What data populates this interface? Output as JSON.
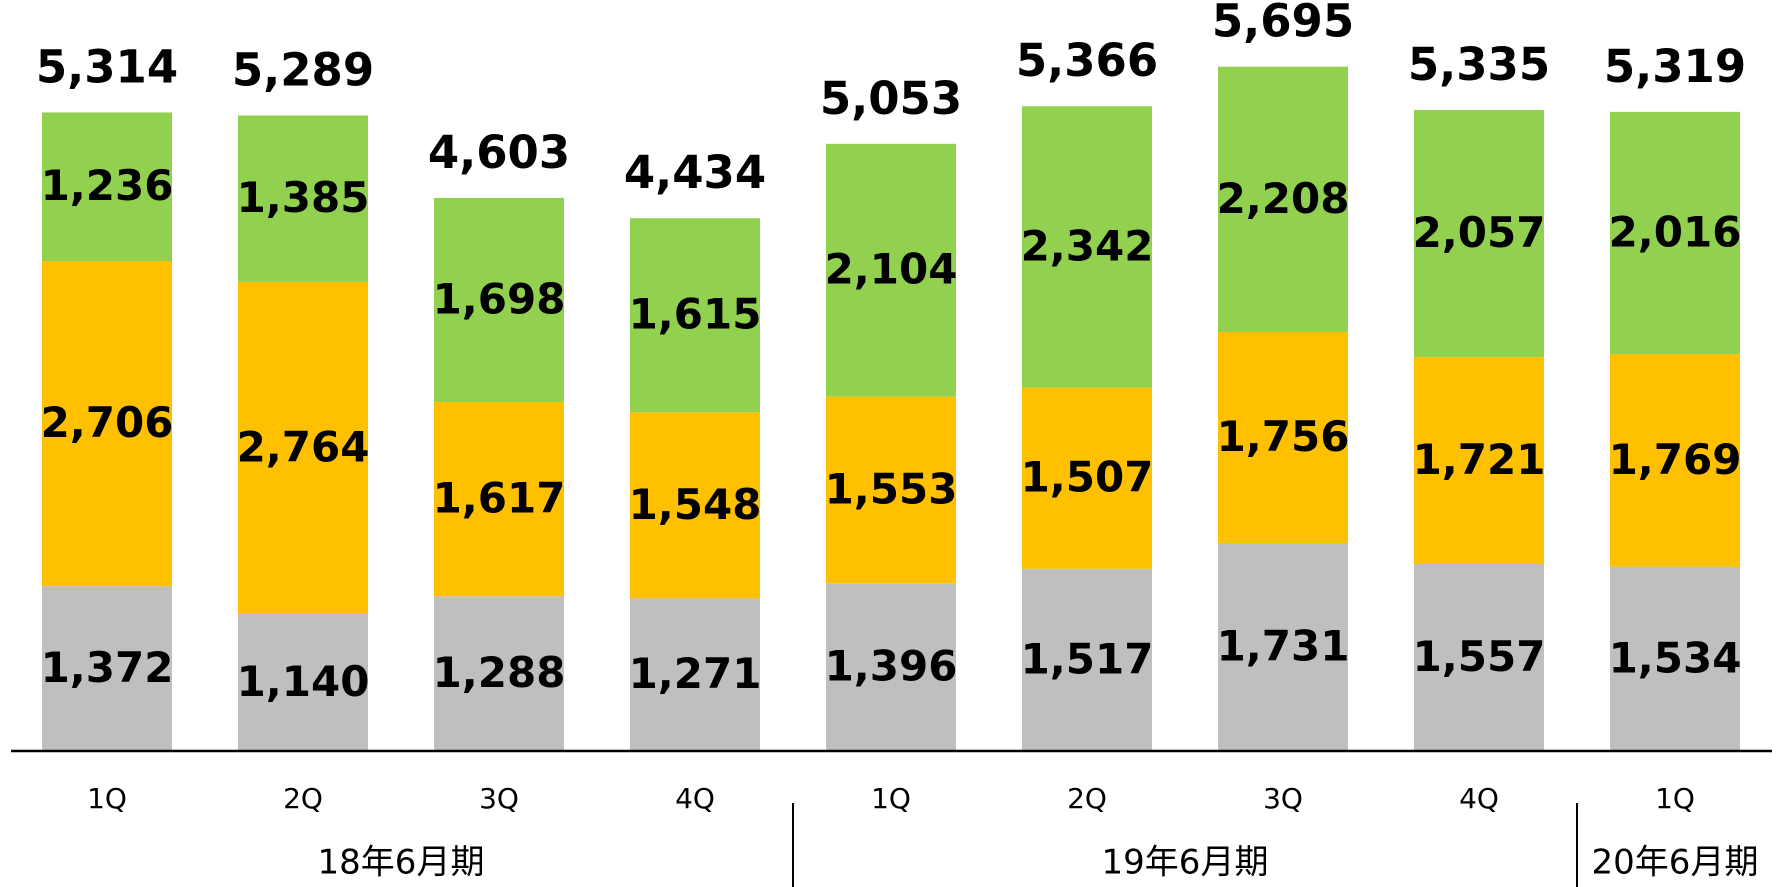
{
  "chart_data": {
    "type": "stacked-bar",
    "groups": [
      {
        "label": "18年6月期",
        "categories": [
          "1Q",
          "2Q",
          "3Q",
          "4Q"
        ]
      },
      {
        "label": "19年6月期",
        "categories": [
          "1Q",
          "2Q",
          "3Q",
          "4Q"
        ]
      },
      {
        "label": "20年6月期",
        "categories": [
          "1Q"
        ]
      }
    ],
    "series": [
      {
        "color": "#bfbfbf",
        "values": [
          1372,
          1140,
          1288,
          1271,
          1396,
          1517,
          1731,
          1557,
          1534
        ],
        "value_labels": [
          "1,372",
          "1,140",
          "1,288",
          "1,271",
          "1,396",
          "1,517",
          "1,731",
          "1,557",
          "1,534"
        ]
      },
      {
        "color": "#ffc000",
        "values": [
          2706,
          2764,
          1617,
          1548,
          1553,
          1507,
          1756,
          1721,
          1769
        ],
        "value_labels": [
          "2,706",
          "2,764",
          "1,617",
          "1,548",
          "1,553",
          "1,507",
          "1,756",
          "1,721",
          "1,769"
        ]
      },
      {
        "color": "#92d050",
        "values": [
          1236,
          1385,
          1698,
          1615,
          2104,
          2342,
          2208,
          2057,
          2016
        ],
        "value_labels": [
          "1,236",
          "1,385",
          "1,698",
          "1,615",
          "2,104",
          "2,342",
          "2,208",
          "2,057",
          "2,016"
        ]
      }
    ],
    "totals": [
      5314,
      5289,
      4603,
      4434,
      5053,
      5366,
      5695,
      5335,
      5319
    ],
    "total_labels": [
      "5,314",
      "5,289",
      "4,603",
      "4,434",
      "5,053",
      "5,366",
      "5,695",
      "5,335",
      "5,319"
    ],
    "ylim": [
      0,
      6250
    ]
  }
}
